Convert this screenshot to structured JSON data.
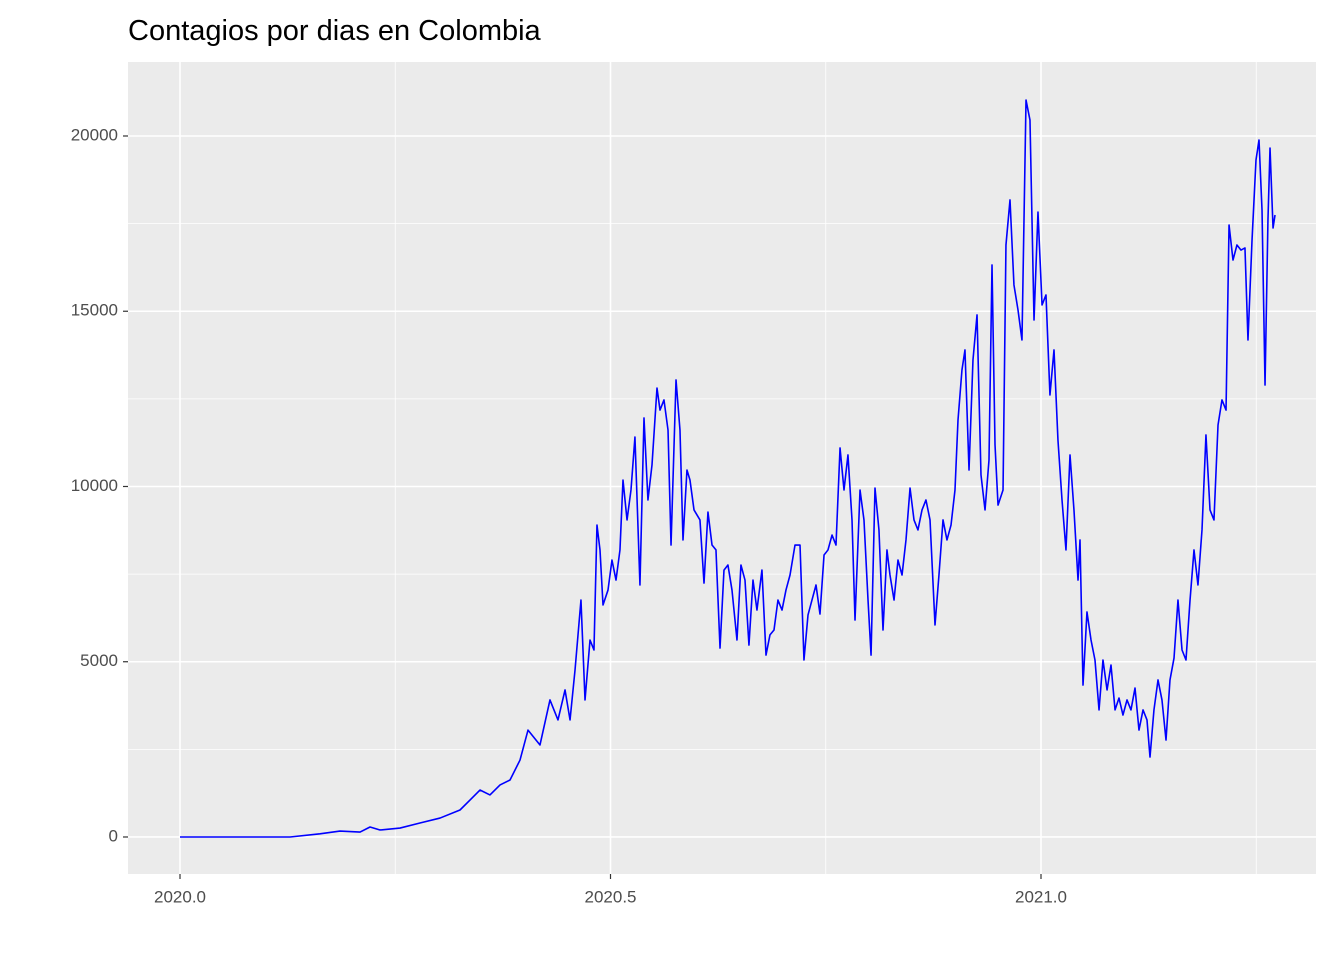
{
  "chart_data": {
    "type": "line",
    "title": "Contagios por dias en Colombia",
    "xlim": [
      2019.9396,
      2021.3194
    ],
    "ylim": [
      -1056,
      22111
    ],
    "xticks": [
      {
        "value": 2020,
        "label": "2020.0"
      },
      2020.5,
      {
        "value": 2021,
        "label": "2021.0"
      }
    ],
    "yticks": [
      0,
      5000,
      10000,
      15000,
      20000
    ],
    "x_minor_ticks": [
      2020.25,
      2020.75,
      2021.25
    ],
    "y_minor_ticks": [
      2500,
      7500,
      12500,
      17500
    ],
    "grid": true,
    "series": [
      {
        "color": "#0000ff",
        "x": [
          2020.0,
          2020.1278,
          2020.1626,
          2020.1858,
          2020.2091,
          2020.2207,
          2020.2323,
          2020.2555,
          2020.2787,
          2020.302,
          2020.3252,
          2020.3368,
          2020.3484,
          2020.36,
          2020.3717,
          2020.3833,
          2020.3949,
          2020.4042,
          2020.4181,
          2020.4297,
          2020.439,
          2020.4472,
          2020.453,
          2020.4588,
          2020.4657,
          2020.4704,
          2020.4762,
          2020.4808,
          2020.4843,
          2020.4878,
          2020.4913,
          2020.4971,
          2020.5017,
          2020.5064,
          2020.511,
          2020.5145,
          2020.5192,
          2020.5238,
          2020.5284,
          2020.5342,
          2020.5389,
          2020.5435,
          2020.5482,
          2020.554,
          2020.5575,
          2020.5621,
          2020.5668,
          2020.5703,
          2020.5761,
          2020.5807,
          2020.5842,
          2020.5888,
          2020.5923,
          2020.597,
          2020.6039,
          2020.6086,
          2020.6132,
          2020.6179,
          2020.6225,
          2020.6272,
          2020.6318,
          2020.6364,
          2020.6411,
          2020.6469,
          2020.6515,
          2020.6562,
          2020.6608,
          2020.6655,
          2020.6701,
          2020.6759,
          2020.6806,
          2020.6852,
          2020.6899,
          2020.6945,
          2020.6992,
          2020.7038,
          2020.7085,
          2020.7143,
          2020.7201,
          2020.7247,
          2020.7294,
          2020.734,
          2020.7387,
          2020.7433,
          2020.748,
          2020.7526,
          2020.7573,
          2020.7619,
          2020.7666,
          2020.7712,
          2020.7758,
          2020.7805,
          2020.784,
          2020.7898,
          2020.7944,
          2020.7991,
          2020.8026,
          2020.8072,
          2020.8118,
          2020.8165,
          2020.8211,
          2020.8246,
          2020.8293,
          2020.8339,
          2020.8386,
          2020.8432,
          2020.8479,
          2020.8525,
          2020.8571,
          2020.8618,
          2020.8664,
          2020.8711,
          2020.8769,
          2020.8815,
          2020.8862,
          2020.8908,
          2020.8955,
          2020.9001,
          2020.9036,
          2020.9082,
          2020.9117,
          2020.9164,
          2020.921,
          2020.9257,
          2020.9303,
          2020.935,
          2020.9396,
          2020.9431,
          2020.9466,
          2020.9501,
          2020.9559,
          2020.9593,
          2020.964,
          2020.9686,
          2020.9733,
          2020.9779,
          2020.9826,
          2020.9872,
          2020.9919,
          2020.9965,
          2021.0012,
          2021.0058,
          2021.0104,
          2021.0151,
          2021.0197,
          2021.0244,
          2021.029,
          2021.0337,
          2021.0383,
          2021.043,
          2021.0453,
          2021.0488,
          2021.0534,
          2021.0581,
          2021.0627,
          2021.0674,
          2021.072,
          2021.0767,
          2021.0813,
          2021.086,
          2021.0906,
          2021.0952,
          2021.0999,
          2021.1045,
          2021.1092,
          2021.1138,
          2021.1185,
          2021.1231,
          2021.1266,
          2021.1312,
          2021.1359,
          2021.1405,
          2021.1452,
          2021.1498,
          2021.1545,
          2021.1591,
          2021.1638,
          2021.1684,
          2021.1731,
          2021.1777,
          2021.1823,
          2021.187,
          2021.1916,
          2021.1963,
          2021.2009,
          2021.2056,
          2021.2102,
          2021.2149,
          2021.2184,
          2021.223,
          2021.2276,
          2021.2323,
          2021.2369,
          2021.2404,
          2021.2451,
          2021.2497,
          2021.2532,
          2021.2567,
          2021.2602,
          2021.2636,
          2021.266,
          2021.2695,
          2021.2718
        ],
        "values": [
          0,
          0,
          90,
          170,
          140,
          285,
          200,
          255,
          400,
          540,
          770,
          1055,
          1340,
          1200,
          1485,
          1625,
          2195,
          3050,
          2625,
          3910,
          3340,
          4195,
          3340,
          4765,
          6760,
          3910,
          5620,
          5335,
          8900,
          8190,
          6620,
          7045,
          7900,
          7330,
          8190,
          10185,
          9045,
          9900,
          11410,
          7190,
          11955,
          9615,
          10615,
          12810,
          12180,
          12470,
          11610,
          8330,
          13040,
          11610,
          8475,
          10470,
          10185,
          9330,
          9045,
          7245,
          9270,
          8330,
          8190,
          5390,
          7615,
          7760,
          7045,
          5620,
          7760,
          7330,
          5475,
          7330,
          6475,
          7615,
          5190,
          5765,
          5905,
          6760,
          6475,
          7045,
          7475,
          8330,
          8330,
          5050,
          6335,
          6760,
          7190,
          6360,
          8045,
          8190,
          8615,
          8330,
          11100,
          9900,
          10900,
          9045,
          6190,
          9900,
          9045,
          6760,
          5190,
          9955,
          8760,
          5905,
          8190,
          7475,
          6760,
          7900,
          7475,
          8475,
          9955,
          9045,
          8760,
          9330,
          9615,
          9045,
          6050,
          7475,
          9045,
          8475,
          8900,
          9900,
          11895,
          13325,
          13895,
          10470,
          13610,
          14895,
          10330,
          9330,
          10755,
          16320,
          11185,
          9470,
          9900,
          16890,
          18175,
          15750,
          15035,
          14180,
          21025,
          20455,
          14750,
          17830,
          15180,
          15465,
          12610,
          13895,
          11325,
          9615,
          8190,
          10900,
          9330,
          7330,
          8475,
          4335,
          6420,
          5620,
          5050,
          3625,
          5050,
          4195,
          4905,
          3625,
          3965,
          3480,
          3910,
          3625,
          4250,
          3050,
          3625,
          3340,
          2280,
          3625,
          4480,
          3910,
          2765,
          4480,
          5105,
          6760,
          5335,
          5050,
          6760,
          8190,
          7190,
          8760,
          11470,
          9330,
          9045,
          11755,
          12470,
          12180,
          17460,
          16460,
          16890,
          16745,
          16805,
          14180,
          17030,
          19315,
          19885,
          17890,
          12895,
          17605,
          19655,
          17375,
          17745
        ]
      }
    ]
  }
}
